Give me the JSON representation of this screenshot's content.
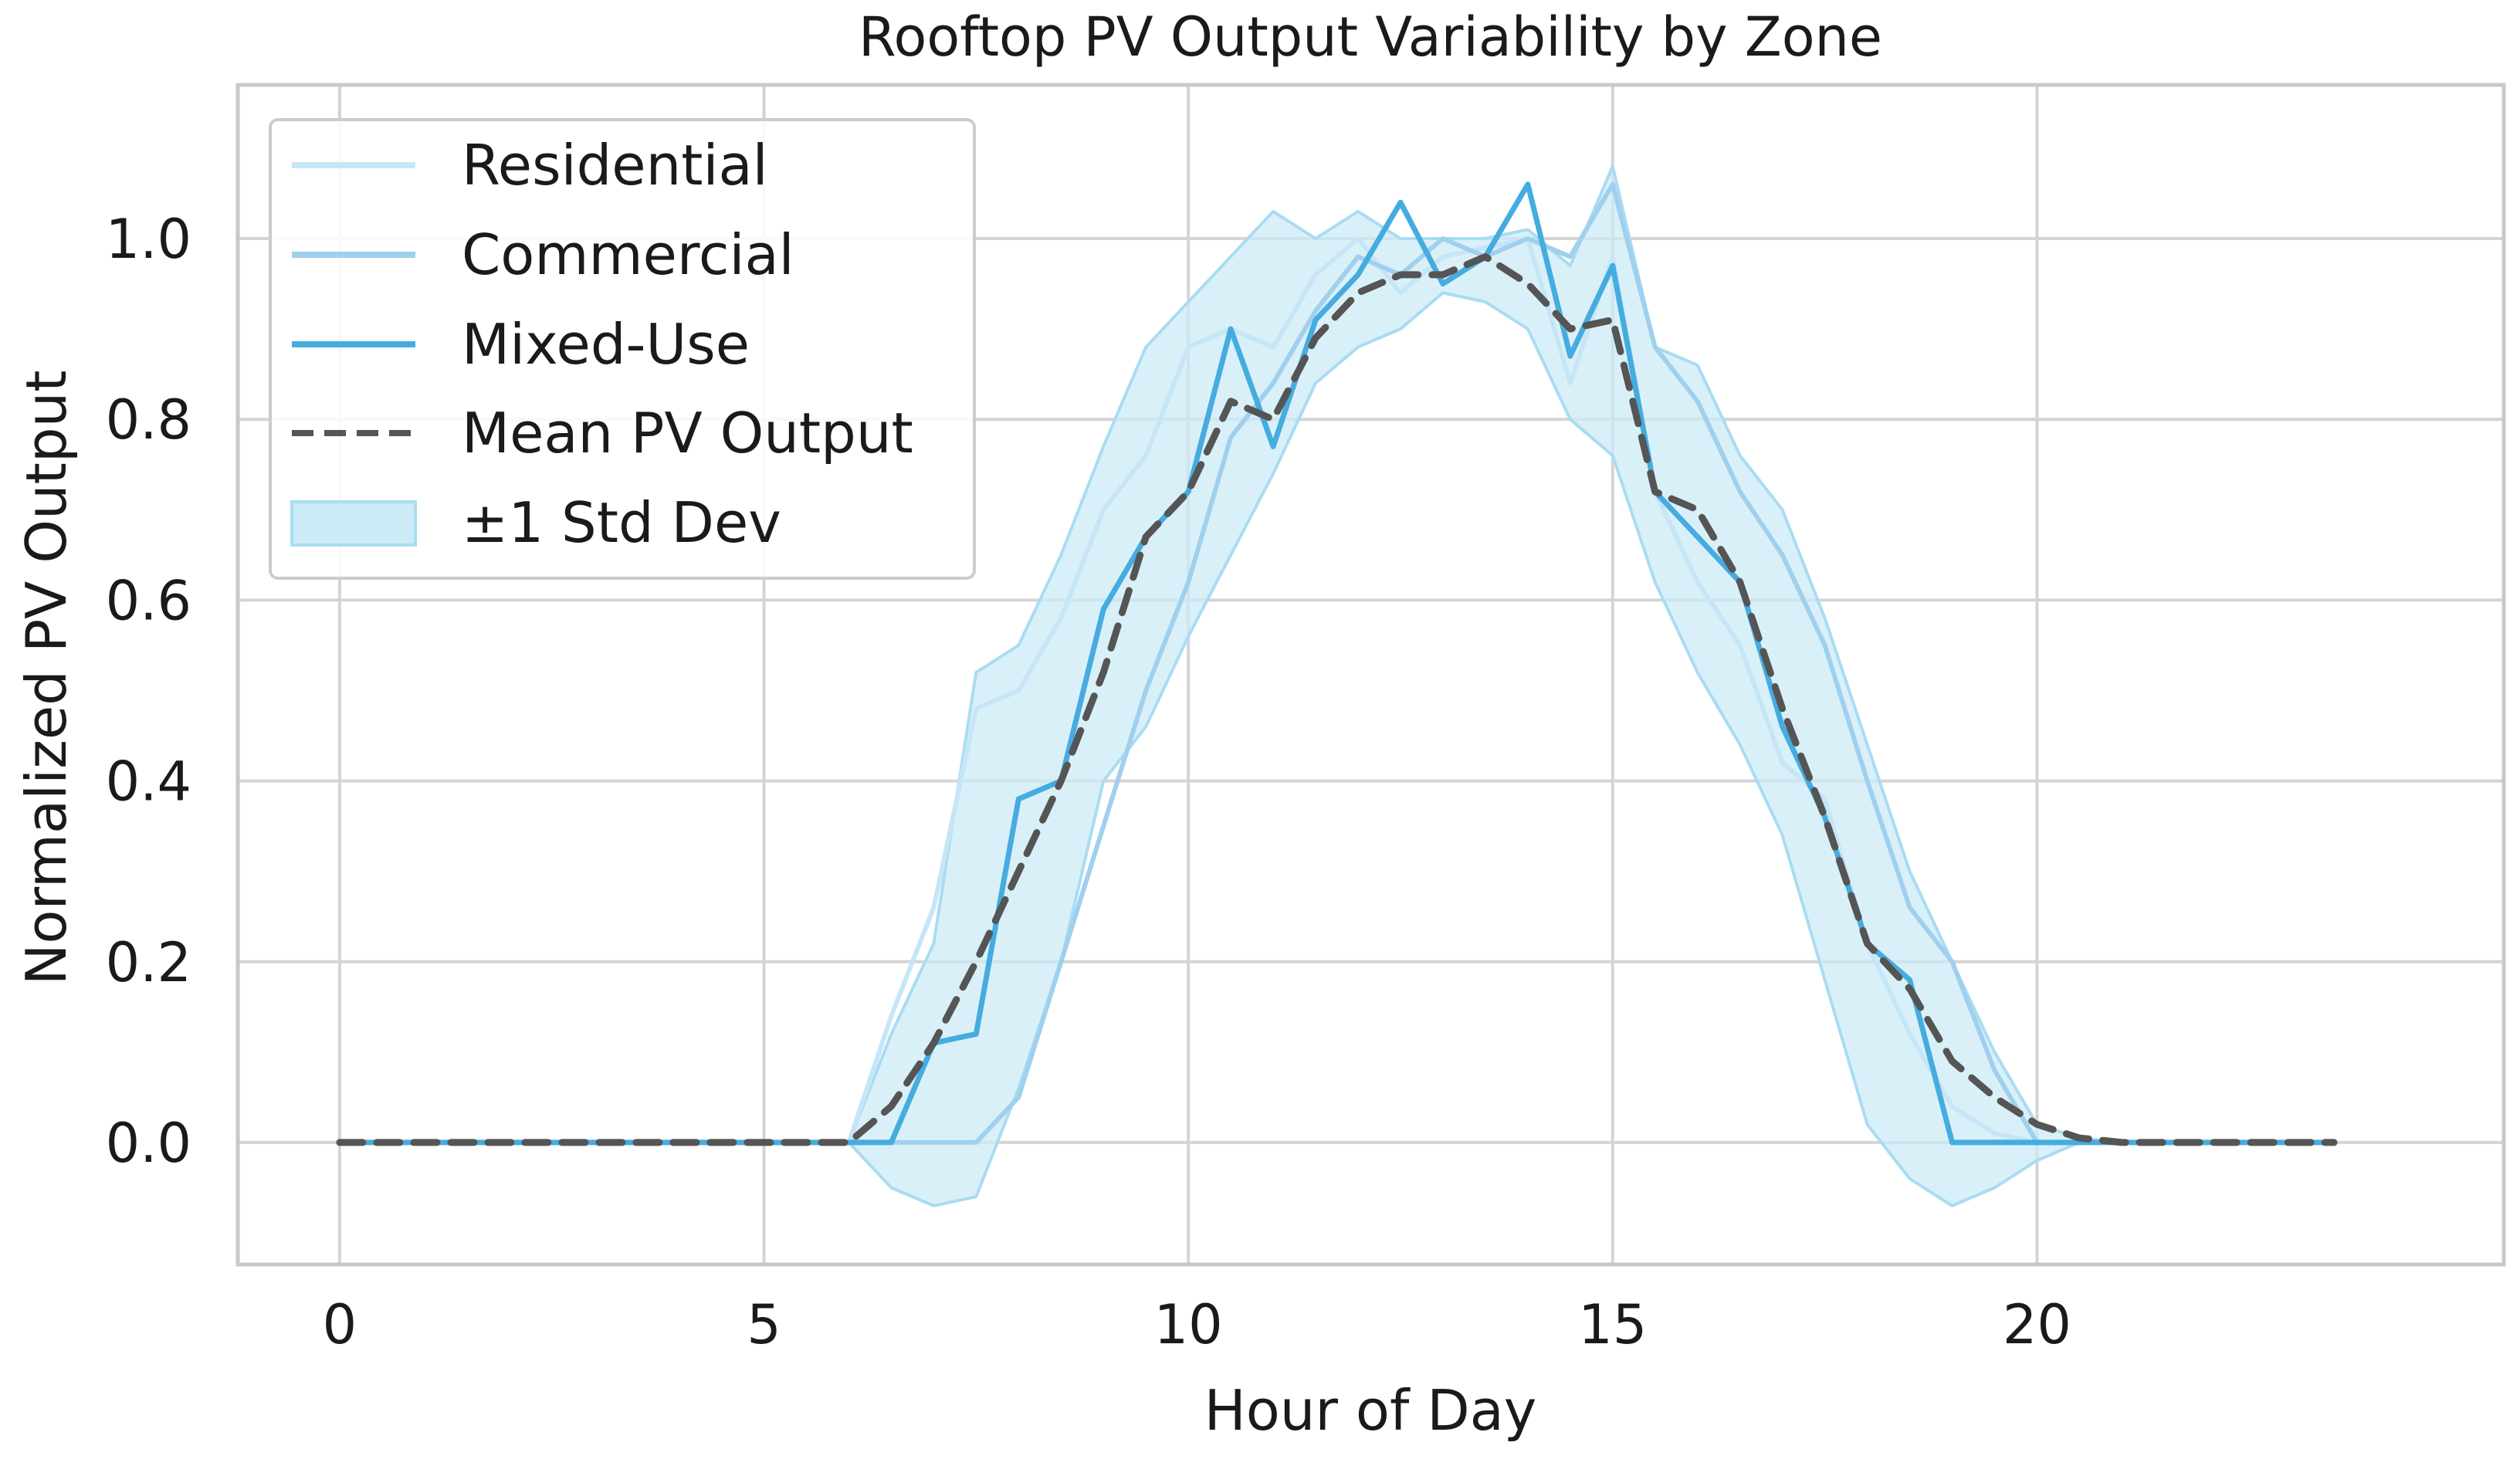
{
  "chart_data": {
    "type": "line",
    "title": "Rooftop PV Output Variability by Zone",
    "xlabel": "Hour of Day",
    "ylabel": "Normalized PV Output",
    "xlim": [
      -1.2,
      25.5
    ],
    "ylim": [
      -0.135,
      1.17
    ],
    "xticks": [
      0,
      5,
      10,
      15,
      20
    ],
    "yticks": [
      0.0,
      0.2,
      0.4,
      0.6,
      0.8,
      1.0
    ],
    "ytick_labels": [
      "0.0",
      "0.2",
      "0.4",
      "0.6",
      "0.8",
      "1.0"
    ],
    "grid": true,
    "legend_position": "top-left",
    "legend": [
      "Residential",
      "Commercial",
      "Mixed-Use",
      "Mean PV Output",
      "±1 Std Dev"
    ],
    "colors": {
      "residential": "#c6e6f7",
      "commercial": "#9fd0ee",
      "mixed_use": "#45ace0",
      "mean": "#555555",
      "std_fill": "#cdebf7",
      "std_edge": "#a9dcf2"
    },
    "x": [
      0,
      0.5,
      1,
      1.5,
      2,
      2.5,
      3,
      3.5,
      4,
      4.5,
      5,
      5.5,
      6,
      6.5,
      7,
      7.5,
      8,
      8.5,
      9,
      9.5,
      10,
      10.5,
      11,
      11.5,
      12,
      12.5,
      13,
      13.5,
      14,
      14.5,
      15,
      15.5,
      16,
      16.5,
      17,
      17.5,
      18,
      18.5,
      19,
      19.5,
      20,
      20.5,
      21,
      21.5,
      22,
      22.5,
      23,
      23.5
    ],
    "series": [
      {
        "name": "Residential",
        "values": [
          0,
          0,
          0,
          0,
          0,
          0,
          0,
          0,
          0,
          0,
          0,
          0,
          0,
          0.14,
          0.26,
          0.48,
          0.5,
          0.58,
          0.7,
          0.76,
          0.88,
          0.9,
          0.88,
          0.96,
          1.0,
          0.94,
          0.98,
          0.99,
          1.0,
          0.84,
          0.98,
          0.72,
          0.62,
          0.55,
          0.42,
          0.38,
          0.22,
          0.12,
          0.04,
          0.01,
          0,
          0,
          0,
          0,
          0,
          0,
          0,
          0
        ]
      },
      {
        "name": "Commercial",
        "values": [
          0,
          0,
          0,
          0,
          0,
          0,
          0,
          0,
          0,
          0,
          0,
          0,
          0,
          0,
          0,
          0,
          0.05,
          0.2,
          0.35,
          0.5,
          0.62,
          0.78,
          0.84,
          0.92,
          0.98,
          0.96,
          1.0,
          0.98,
          1.0,
          0.98,
          1.06,
          0.88,
          0.82,
          0.72,
          0.65,
          0.55,
          0.4,
          0.26,
          0.2,
          0.08,
          0,
          0,
          0,
          0,
          0,
          0,
          0,
          0
        ]
      },
      {
        "name": "Mixed-Use",
        "values": [
          0,
          0,
          0,
          0,
          0,
          0,
          0,
          0,
          0,
          0,
          0,
          0,
          0,
          0,
          0.11,
          0.12,
          0.38,
          0.4,
          0.59,
          0.67,
          0.72,
          0.9,
          0.77,
          0.91,
          0.96,
          1.04,
          0.95,
          0.98,
          1.06,
          0.87,
          0.97,
          0.72,
          0.67,
          0.62,
          0.46,
          0.36,
          0.22,
          0.18,
          0,
          0,
          0,
          0,
          0,
          0,
          0,
          0,
          0,
          0
        ]
      },
      {
        "name": "Mean PV Output",
        "values": [
          0,
          0,
          0,
          0,
          0,
          0,
          0,
          0,
          0,
          0,
          0,
          0,
          0,
          0.04,
          0.11,
          0.2,
          0.3,
          0.4,
          0.52,
          0.67,
          0.72,
          0.82,
          0.8,
          0.89,
          0.94,
          0.96,
          0.96,
          0.98,
          0.95,
          0.9,
          0.91,
          0.72,
          0.7,
          0.62,
          0.48,
          0.36,
          0.22,
          0.17,
          0.09,
          0.05,
          0.02,
          0.005,
          0,
          0,
          0,
          0,
          0,
          0
        ]
      }
    ],
    "std_upper": [
      0,
      0,
      0,
      0,
      0,
      0,
      0,
      0,
      0,
      0,
      0,
      0,
      0,
      0.12,
      0.22,
      0.52,
      0.55,
      0.65,
      0.77,
      0.88,
      0.93,
      0.98,
      1.03,
      1.0,
      1.03,
      1.0,
      1.0,
      1.0,
      1.01,
      0.97,
      1.08,
      0.88,
      0.86,
      0.76,
      0.7,
      0.58,
      0.44,
      0.3,
      0.2,
      0.1,
      0.02,
      0.005,
      0,
      0,
      0,
      0,
      0,
      0
    ],
    "std_lower": [
      0,
      0,
      0,
      0,
      0,
      0,
      0,
      0,
      0,
      0,
      0,
      0,
      0,
      -0.05,
      -0.07,
      -0.06,
      0.06,
      0.2,
      0.4,
      0.46,
      0.56,
      0.65,
      0.74,
      0.84,
      0.88,
      0.9,
      0.94,
      0.93,
      0.9,
      0.8,
      0.76,
      0.62,
      0.52,
      0.44,
      0.34,
      0.18,
      0.02,
      -0.04,
      -0.07,
      -0.05,
      -0.02,
      0,
      0,
      0,
      0,
      0,
      0,
      0
    ]
  }
}
